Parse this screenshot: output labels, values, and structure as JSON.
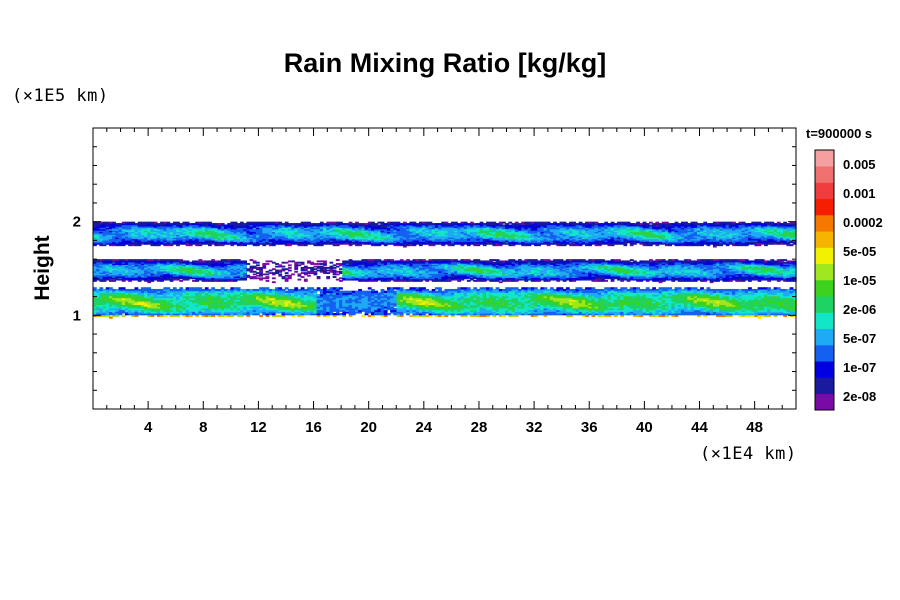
{
  "chart_data": {
    "type": "heatmap",
    "title": "Rain Mixing Ratio [kg/kg]",
    "ylabel": "Height",
    "xlabel": "",
    "x_unit": "(×1E4 km)",
    "y_unit": "(×1E5 km)",
    "time_label": "t=900000 s",
    "xlim": [
      0,
      51
    ],
    "ylim": [
      0,
      3
    ],
    "x_ticks": [
      4,
      8,
      12,
      16,
      20,
      24,
      28,
      32,
      36,
      40,
      44,
      48
    ],
    "x_tick_labels": [
      "4",
      "8",
      "12",
      "16",
      "20",
      "24",
      "28",
      "32",
      "36",
      "40",
      "44",
      "48"
    ],
    "y_ticks": [
      1,
      2
    ],
    "y_tick_labels": [
      "1",
      "2"
    ],
    "bands": [
      {
        "name": "upper",
        "y_range": [
          1.73,
          2.0
        ],
        "intensity": "low"
      },
      {
        "name": "middle",
        "y_range": [
          1.35,
          1.6
        ],
        "intensity": "low"
      },
      {
        "name": "lower",
        "y_range": [
          0.97,
          1.3
        ],
        "intensity": "moderate"
      }
    ],
    "colorbar": {
      "levels": [
        "0.005",
        "0.001",
        "0.0002",
        "5e-05",
        "1e-05",
        "2e-06",
        "5e-07",
        "1e-07",
        "2e-08"
      ],
      "colors": [
        "#7a0aa6",
        "#1a1a9e",
        "#0000e0",
        "#1460f0",
        "#1eaaf5",
        "#12e6c8",
        "#1ed264",
        "#3cd21e",
        "#a0e61e",
        "#f0f000",
        "#f5b400",
        "#f57800",
        "#f51e00",
        "#f03c3c",
        "#f07070",
        "#f5a0a0"
      ]
    }
  }
}
